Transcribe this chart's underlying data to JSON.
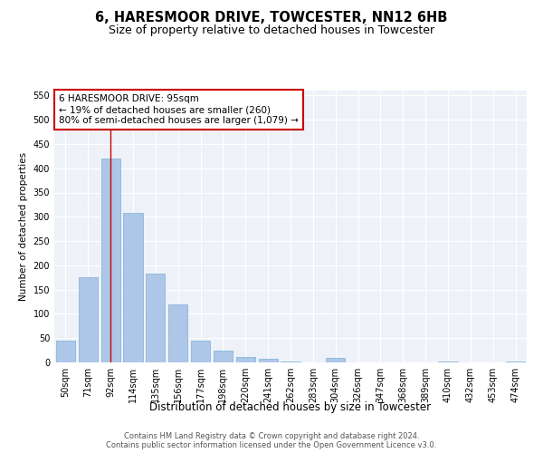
{
  "title": "6, HARESMOOR DRIVE, TOWCESTER, NN12 6HB",
  "subtitle": "Size of property relative to detached houses in Towcester",
  "xlabel": "Distribution of detached houses by size in Towcester",
  "ylabel": "Number of detached properties",
  "categories": [
    "50sqm",
    "71sqm",
    "92sqm",
    "114sqm",
    "135sqm",
    "156sqm",
    "177sqm",
    "198sqm",
    "220sqm",
    "241sqm",
    "262sqm",
    "283sqm",
    "304sqm",
    "326sqm",
    "347sqm",
    "368sqm",
    "389sqm",
    "410sqm",
    "432sqm",
    "453sqm",
    "474sqm"
  ],
  "values": [
    45,
    175,
    420,
    308,
    183,
    120,
    45,
    25,
    12,
    8,
    2,
    0,
    9,
    0,
    0,
    0,
    0,
    2,
    0,
    0,
    2
  ],
  "bar_color": "#aec6e8",
  "bar_edge_color": "#7aafd4",
  "vline_color": "#cc0000",
  "annotation_text": "6 HARESMOOR DRIVE: 95sqm\n← 19% of detached houses are smaller (260)\n80% of semi-detached houses are larger (1,079) →",
  "annotation_box_color": "#ffffff",
  "annotation_box_edge_color": "#cc0000",
  "ylim": [
    0,
    560
  ],
  "yticks": [
    0,
    50,
    100,
    150,
    200,
    250,
    300,
    350,
    400,
    450,
    500,
    550
  ],
  "bg_color": "#eef2f8",
  "footer1": "Contains HM Land Registry data © Crown copyright and database right 2024.",
  "footer2": "Contains public sector information licensed under the Open Government Licence v3.0.",
  "title_fontsize": 10.5,
  "subtitle_fontsize": 9,
  "tick_fontsize": 7,
  "ylabel_fontsize": 7.5,
  "xlabel_fontsize": 8.5,
  "annotation_fontsize": 7.5,
  "footer_fontsize": 6
}
